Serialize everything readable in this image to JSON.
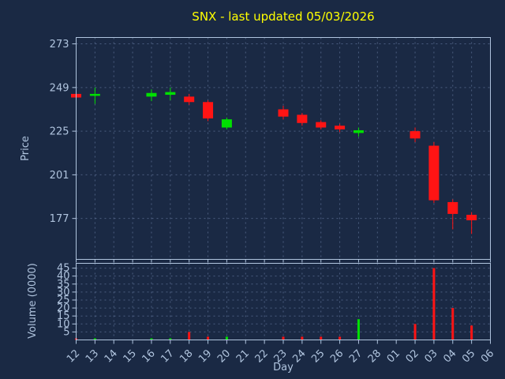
{
  "chart_data": {
    "type": "candlestick",
    "title": "SNX - last updated 05/03/2026",
    "xlabel": "Day",
    "ylabel": "Price",
    "ylabel2": "Volume (0000)",
    "categories": [
      "12",
      "13",
      "14",
      "15",
      "16",
      "17",
      "18",
      "19",
      "20",
      "21",
      "22",
      "23",
      "24",
      "25",
      "26",
      "27",
      "28",
      "01",
      "02",
      "03",
      "04",
      "05",
      "06"
    ],
    "price_ticks": [
      273,
      249,
      225,
      201,
      177
    ],
    "price_range": [
      154.5,
      276.5
    ],
    "volume_ticks": [
      45,
      40,
      35,
      30,
      25,
      20,
      15,
      10,
      5
    ],
    "volume_range": [
      0,
      48
    ],
    "legend": "none",
    "grid": "dashed",
    "candles": [
      {
        "day": "12",
        "open": 245.5,
        "high": 246.5,
        "low": 242.0,
        "close": 243.5,
        "volume": 1,
        "direction": "down"
      },
      {
        "day": "13",
        "open": 244.5,
        "high": 249.0,
        "low": 240.0,
        "close": 245.5,
        "volume": 1,
        "direction": "up"
      },
      {
        "day": "16",
        "open": 244.0,
        "high": 248.0,
        "low": 241.5,
        "close": 246.0,
        "volume": 1,
        "direction": "up"
      },
      {
        "day": "17",
        "open": 245.0,
        "high": 249.0,
        "low": 242.0,
        "close": 246.5,
        "volume": 1,
        "direction": "up"
      },
      {
        "day": "18",
        "open": 244.0,
        "high": 245.5,
        "low": 239.5,
        "close": 241.0,
        "volume": 5,
        "direction": "down"
      },
      {
        "day": "19",
        "open": 241.0,
        "high": 242.0,
        "low": 230.5,
        "close": 232.0,
        "volume": 2,
        "direction": "down"
      },
      {
        "day": "20",
        "open": 227.0,
        "high": 232.5,
        "low": 226.0,
        "close": 231.5,
        "volume": 2,
        "direction": "up"
      },
      {
        "day": "23",
        "open": 237.0,
        "high": 239.0,
        "low": 231.5,
        "close": 233.0,
        "volume": 2,
        "direction": "down"
      },
      {
        "day": "24",
        "open": 234.0,
        "high": 235.0,
        "low": 228.0,
        "close": 229.5,
        "volume": 2,
        "direction": "down"
      },
      {
        "day": "25",
        "open": 230.0,
        "high": 231.0,
        "low": 226.0,
        "close": 227.0,
        "volume": 2,
        "direction": "down"
      },
      {
        "day": "26",
        "open": 228.0,
        "high": 229.0,
        "low": 224.5,
        "close": 226.0,
        "volume": 2,
        "direction": "down"
      },
      {
        "day": "27",
        "open": 224.0,
        "high": 227.0,
        "low": 222.0,
        "close": 225.5,
        "volume": 13,
        "direction": "up"
      },
      {
        "day": "02",
        "open": 225.0,
        "high": 227.0,
        "low": 219.0,
        "close": 221.0,
        "volume": 10,
        "direction": "down"
      },
      {
        "day": "03",
        "open": 217.0,
        "high": 219.0,
        "low": 185.5,
        "close": 187.0,
        "volume": 45,
        "direction": "down"
      },
      {
        "day": "04",
        "open": 186.0,
        "high": 187.5,
        "low": 171.0,
        "close": 179.5,
        "volume": 20,
        "direction": "down"
      },
      {
        "day": "05",
        "open": 179.0,
        "high": 180.5,
        "low": 168.5,
        "close": 176.0,
        "volume": 9,
        "direction": "down"
      }
    ],
    "colors": {
      "up": "#00e000",
      "down": "#ff1414",
      "background": "#1a2944",
      "grid": "#5c6f93",
      "axis": "#b0c4de",
      "tick_label": "#b0c4de",
      "title": "#ffff00"
    }
  }
}
